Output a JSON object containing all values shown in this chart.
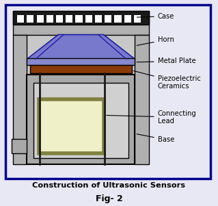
{
  "title": "Construction of Ultrasonic Sensors",
  "subtitle": "Fig- 2",
  "background_color": "#e8e8f4",
  "border_color": "#00008B",
  "text_color": "#000000",
  "colors": {
    "case_top": "#1a1a1a",
    "case_body": "#b0b0b0",
    "horn_fill": "#7878cc",
    "horn_lines": "#2020a0",
    "metal_plate_fill": "#8888cc",
    "piezo_fill": "#8B3a0a",
    "base_fill": "#a8a8a8",
    "base_inner": "#d0d0d0",
    "cavity_border": "#808040",
    "cavity_inner": "#f0f0c8",
    "lead_color": "#1a1a1a",
    "annotation_color": "#000000"
  },
  "labels": {
    "case": "Case",
    "horn": "Horn",
    "metal_plate": "Metal Plate",
    "piezo": "Piezoelectric\nCeramics",
    "connecting_lead": "Connecting\nLead",
    "base": "Base"
  }
}
